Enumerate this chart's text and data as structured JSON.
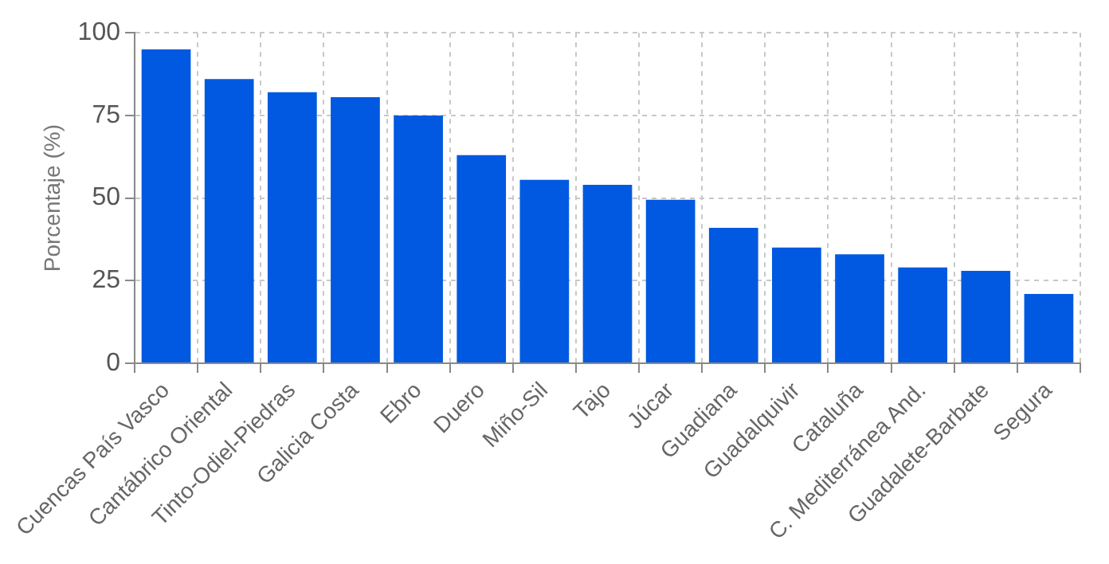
{
  "chart_data": {
    "type": "bar",
    "ylabel": "Porcentaje (%)",
    "categories": [
      "Cuencas País Vasco",
      "Cantábrico Oriental",
      "Tinto-Odiel-Piedras",
      "Galicia Costa",
      "Ebro",
      "Duero",
      "Miño-Sil",
      "Tajo",
      "Júcar",
      "Guadiana",
      "Guadalquivir",
      "Cataluña",
      "C. Mediterránea And.",
      "Guadalete-Barbate",
      "Segura"
    ],
    "values": [
      95,
      86,
      82,
      80.5,
      75,
      63,
      55.5,
      54,
      49.5,
      41,
      35,
      33,
      29,
      28,
      21
    ],
    "color": "#0059e0",
    "ylim": [
      0,
      100
    ],
    "yticks": [
      0,
      25,
      50,
      75,
      100
    ],
    "grid": true
  }
}
